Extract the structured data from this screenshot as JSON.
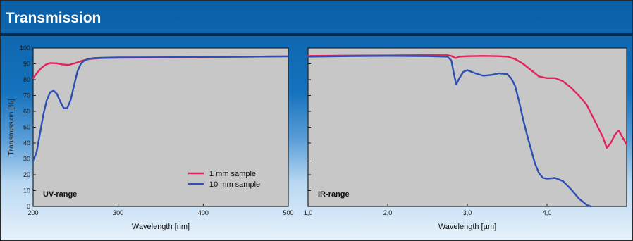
{
  "title": "Transmission",
  "colors": {
    "series_1mm": "#e3245a",
    "series_10mm": "#2b4fb3",
    "plot_bg": "#c7c7c7"
  },
  "chart_data": [
    {
      "type": "line",
      "panel_label": "UV-range",
      "xlabel": "Wavelength [nm]",
      "ylabel": "Transmission [%]",
      "xlim": [
        200,
        500
      ],
      "ylim": [
        0,
        100
      ],
      "x_ticks": [
        {
          "value": 200,
          "label": "200"
        },
        {
          "value": 300,
          "label": "300"
        },
        {
          "value": 400,
          "label": "400"
        },
        {
          "value": 500,
          "label": "500"
        }
      ],
      "y_ticks": [
        {
          "value": 0,
          "label": "0"
        },
        {
          "value": 10,
          "label": "10"
        },
        {
          "value": 20,
          "label": "20"
        },
        {
          "value": 30,
          "label": "30"
        },
        {
          "value": 40,
          "label": "40"
        },
        {
          "value": 50,
          "label": "50"
        },
        {
          "value": 60,
          "label": "60"
        },
        {
          "value": 70,
          "label": "70"
        },
        {
          "value": 80,
          "label": "80"
        },
        {
          "value": 90,
          "label": "90"
        },
        {
          "value": 100,
          "label": "100"
        }
      ],
      "legend": {
        "position": "bottom-right",
        "entries": [
          "1 mm sample",
          "10 mm sample"
        ]
      },
      "series": [
        {
          "name": "1 mm sample",
          "color": "#e3245a",
          "x": [
            200,
            205,
            210,
            215,
            220,
            228,
            235,
            242,
            250,
            258,
            265,
            280,
            300,
            350,
            400,
            450,
            500
          ],
          "y": [
            81,
            84.5,
            87.5,
            89.5,
            90.5,
            90.3,
            89.5,
            89.3,
            90.5,
            92,
            93,
            93.6,
            93.8,
            94,
            94.2,
            94.5,
            94.7
          ]
        },
        {
          "name": "10 mm sample",
          "color": "#2b4fb3",
          "x": [
            200,
            204,
            208,
            212,
            216,
            220,
            224,
            228,
            232,
            236,
            240,
            244,
            248,
            252,
            256,
            260,
            265,
            270,
            280,
            300,
            350,
            400,
            450,
            500
          ],
          "y": [
            29,
            34,
            46,
            58,
            67,
            72,
            73,
            71,
            66,
            62,
            62,
            67,
            76,
            85,
            90,
            92,
            93,
            93.5,
            93.8,
            94,
            94.1,
            94.3,
            94.5,
            94.7
          ]
        }
      ]
    },
    {
      "type": "line",
      "panel_label": "IR-range",
      "xlabel": "Wavelength [µm]",
      "xlim": [
        1.0,
        5.0
      ],
      "ylim": [
        0,
        100
      ],
      "x_ticks": [
        {
          "value": 1.0,
          "label": "1,0"
        },
        {
          "value": 2.0,
          "label": "2,0"
        },
        {
          "value": 3.0,
          "label": "3,0"
        },
        {
          "value": 4.0,
          "label": "4,0"
        }
      ],
      "series": [
        {
          "name": "1 mm sample",
          "color": "#e3245a",
          "x": [
            1.0,
            1.5,
            2.0,
            2.5,
            2.75,
            2.8,
            2.85,
            2.9,
            3.0,
            3.2,
            3.4,
            3.5,
            3.6,
            3.7,
            3.8,
            3.9,
            4.0,
            4.1,
            4.2,
            4.3,
            4.4,
            4.5,
            4.6,
            4.7,
            4.75,
            4.8,
            4.85,
            4.9,
            5.0
          ],
          "y": [
            95,
            95.2,
            95.3,
            95.5,
            95.4,
            95,
            93.5,
            94.5,
            94.8,
            95,
            94.8,
            94.5,
            93,
            90,
            86,
            82,
            81,
            81,
            79,
            75,
            70,
            64,
            54,
            44,
            37,
            40,
            45,
            48,
            39
          ]
        },
        {
          "name": "10 mm sample",
          "color": "#2b4fb3",
          "x": [
            1.0,
            1.5,
            2.0,
            2.5,
            2.75,
            2.8,
            2.83,
            2.86,
            2.9,
            2.95,
            3.0,
            3.1,
            3.2,
            3.3,
            3.4,
            3.5,
            3.55,
            3.6,
            3.65,
            3.7,
            3.75,
            3.8,
            3.85,
            3.9,
            3.95,
            4.0,
            4.1,
            4.2,
            4.3,
            4.4,
            4.5,
            4.55
          ],
          "y": [
            94.5,
            94.8,
            95,
            94.8,
            94.5,
            92,
            84,
            77,
            81,
            85,
            86,
            84,
            82.5,
            83,
            84,
            83.5,
            81,
            76,
            66,
            55,
            45,
            36,
            27,
            21,
            18,
            17.5,
            18,
            16,
            11,
            5,
            1,
            0
          ]
        }
      ]
    }
  ]
}
